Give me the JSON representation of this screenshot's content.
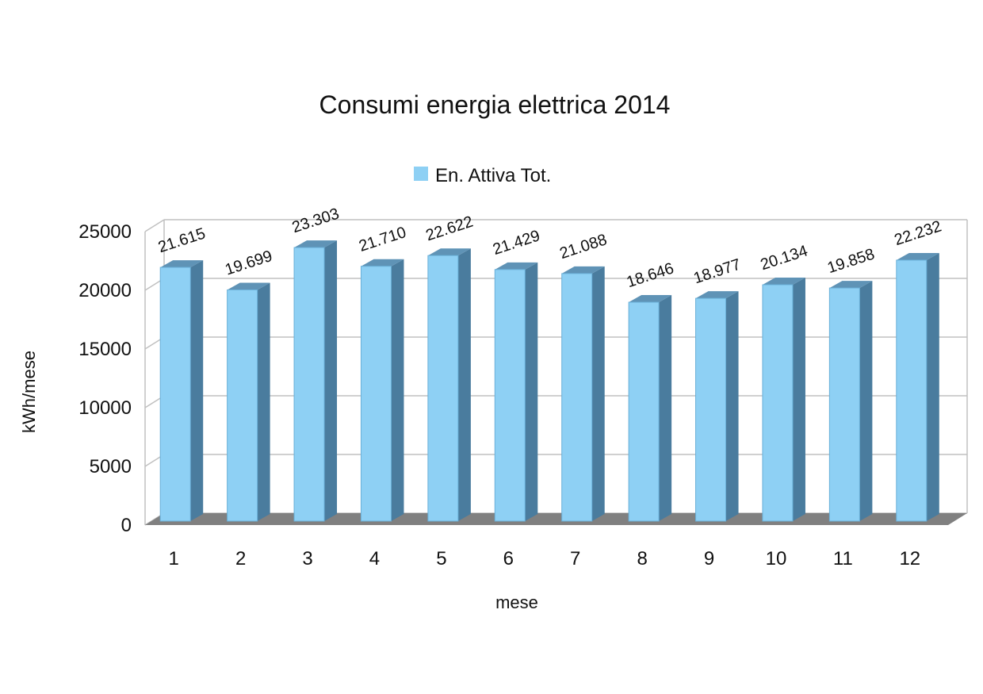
{
  "chart_data": {
    "type": "bar",
    "title": "Consumi energia elettrica 2014",
    "xlabel": "mese",
    "ylabel": "kWh/mese",
    "categories": [
      "1",
      "2",
      "3",
      "4",
      "5",
      "6",
      "7",
      "8",
      "9",
      "10",
      "11",
      "12"
    ],
    "series": [
      {
        "name": "En. Attiva Tot.",
        "values": [
          21615,
          19699,
          23303,
          21710,
          22622,
          21429,
          21088,
          18646,
          18977,
          20134,
          19858,
          22232
        ],
        "labels": [
          "21.615",
          "19.699",
          "23.303",
          "21.710",
          "22.622",
          "21.429",
          "21.088",
          "18.646",
          "18.977",
          "20.134",
          "19.858",
          "22.232"
        ]
      }
    ],
    "ylim": [
      0,
      25000
    ],
    "yticks": [
      0,
      5000,
      10000,
      15000,
      20000,
      25000
    ],
    "grid": true,
    "legend": "top",
    "colors": {
      "bar_front": "#8ed0f4",
      "bar_side": "#4a7c9e",
      "bar_top": "#5f93b6",
      "floor": "#808080",
      "grid": "#c0c0c0"
    }
  }
}
